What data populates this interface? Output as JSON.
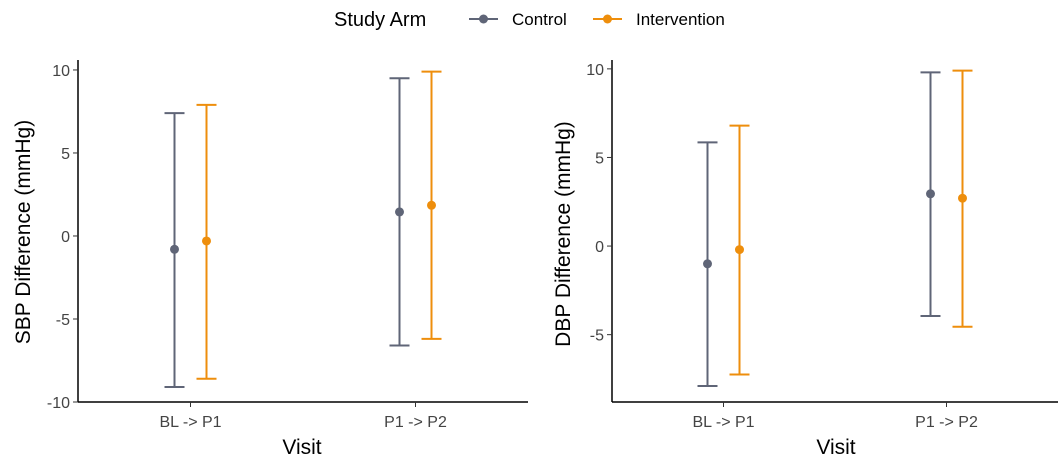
{
  "legend": {
    "title": "Study Arm",
    "items": [
      {
        "label": "Control",
        "color": "#5f6577"
      },
      {
        "label": "Intervention",
        "color": "#ee8e0c"
      }
    ]
  },
  "chart_data": [
    {
      "type": "errorbar",
      "xlabel": "Visit",
      "ylabel": "SBP Difference (mmHg)",
      "categories": [
        "BL -> P1",
        "P1 -> P2"
      ],
      "yticks": [
        -10,
        -5,
        0,
        5,
        10
      ],
      "ylim": [
        -10,
        10.6
      ],
      "series": [
        {
          "name": "Control",
          "color": "#5f6577",
          "mean": [
            -0.8,
            1.45
          ],
          "lower": [
            -9.1,
            -6.6
          ],
          "upper": [
            7.4,
            9.5
          ]
        },
        {
          "name": "Intervention",
          "color": "#ee8e0c",
          "mean": [
            -0.3,
            1.85
          ],
          "lower": [
            -8.6,
            -6.2
          ],
          "upper": [
            7.9,
            9.9
          ]
        }
      ]
    },
    {
      "type": "errorbar",
      "xlabel": "Visit",
      "ylabel": "DBP Difference (mmHg)",
      "categories": [
        "BL -> P1",
        "P1 -> P2"
      ],
      "yticks": [
        -5,
        0,
        5,
        10
      ],
      "ylim": [
        -8.8,
        10.5
      ],
      "series": [
        {
          "name": "Control",
          "color": "#5f6577",
          "mean": [
            -1.0,
            2.95
          ],
          "lower": [
            -7.9,
            -3.95
          ],
          "upper": [
            5.85,
            9.8
          ]
        },
        {
          "name": "Intervention",
          "color": "#ee8e0c",
          "mean": [
            -0.2,
            2.7
          ],
          "lower": [
            -7.25,
            -4.55
          ],
          "upper": [
            6.8,
            9.9
          ]
        }
      ]
    }
  ]
}
